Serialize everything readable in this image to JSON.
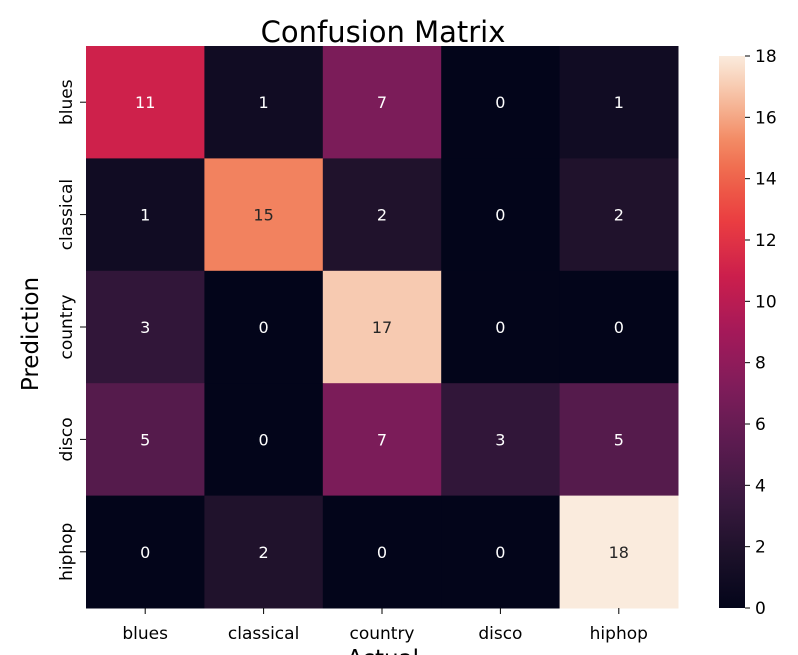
{
  "chart_data": {
    "type": "heatmap",
    "title": "Confusion Matrix",
    "xlabel": "Actual",
    "ylabel": "Prediction",
    "x_categories": [
      "blues",
      "classical",
      "country",
      "disco",
      "hiphop"
    ],
    "y_categories": [
      "blues",
      "classical",
      "country",
      "disco",
      "hiphop"
    ],
    "values": [
      [
        11,
        1,
        7,
        0,
        1
      ],
      [
        1,
        15,
        2,
        0,
        2
      ],
      [
        3,
        0,
        17,
        0,
        0
      ],
      [
        5,
        0,
        7,
        3,
        5
      ],
      [
        0,
        2,
        0,
        0,
        18
      ]
    ],
    "colorbar": {
      "range": [
        0,
        18
      ],
      "ticks": [
        "0",
        "2",
        "4",
        "6",
        "8",
        "10",
        "12",
        "14",
        "16",
        "18"
      ],
      "colormap": "rocket"
    }
  }
}
